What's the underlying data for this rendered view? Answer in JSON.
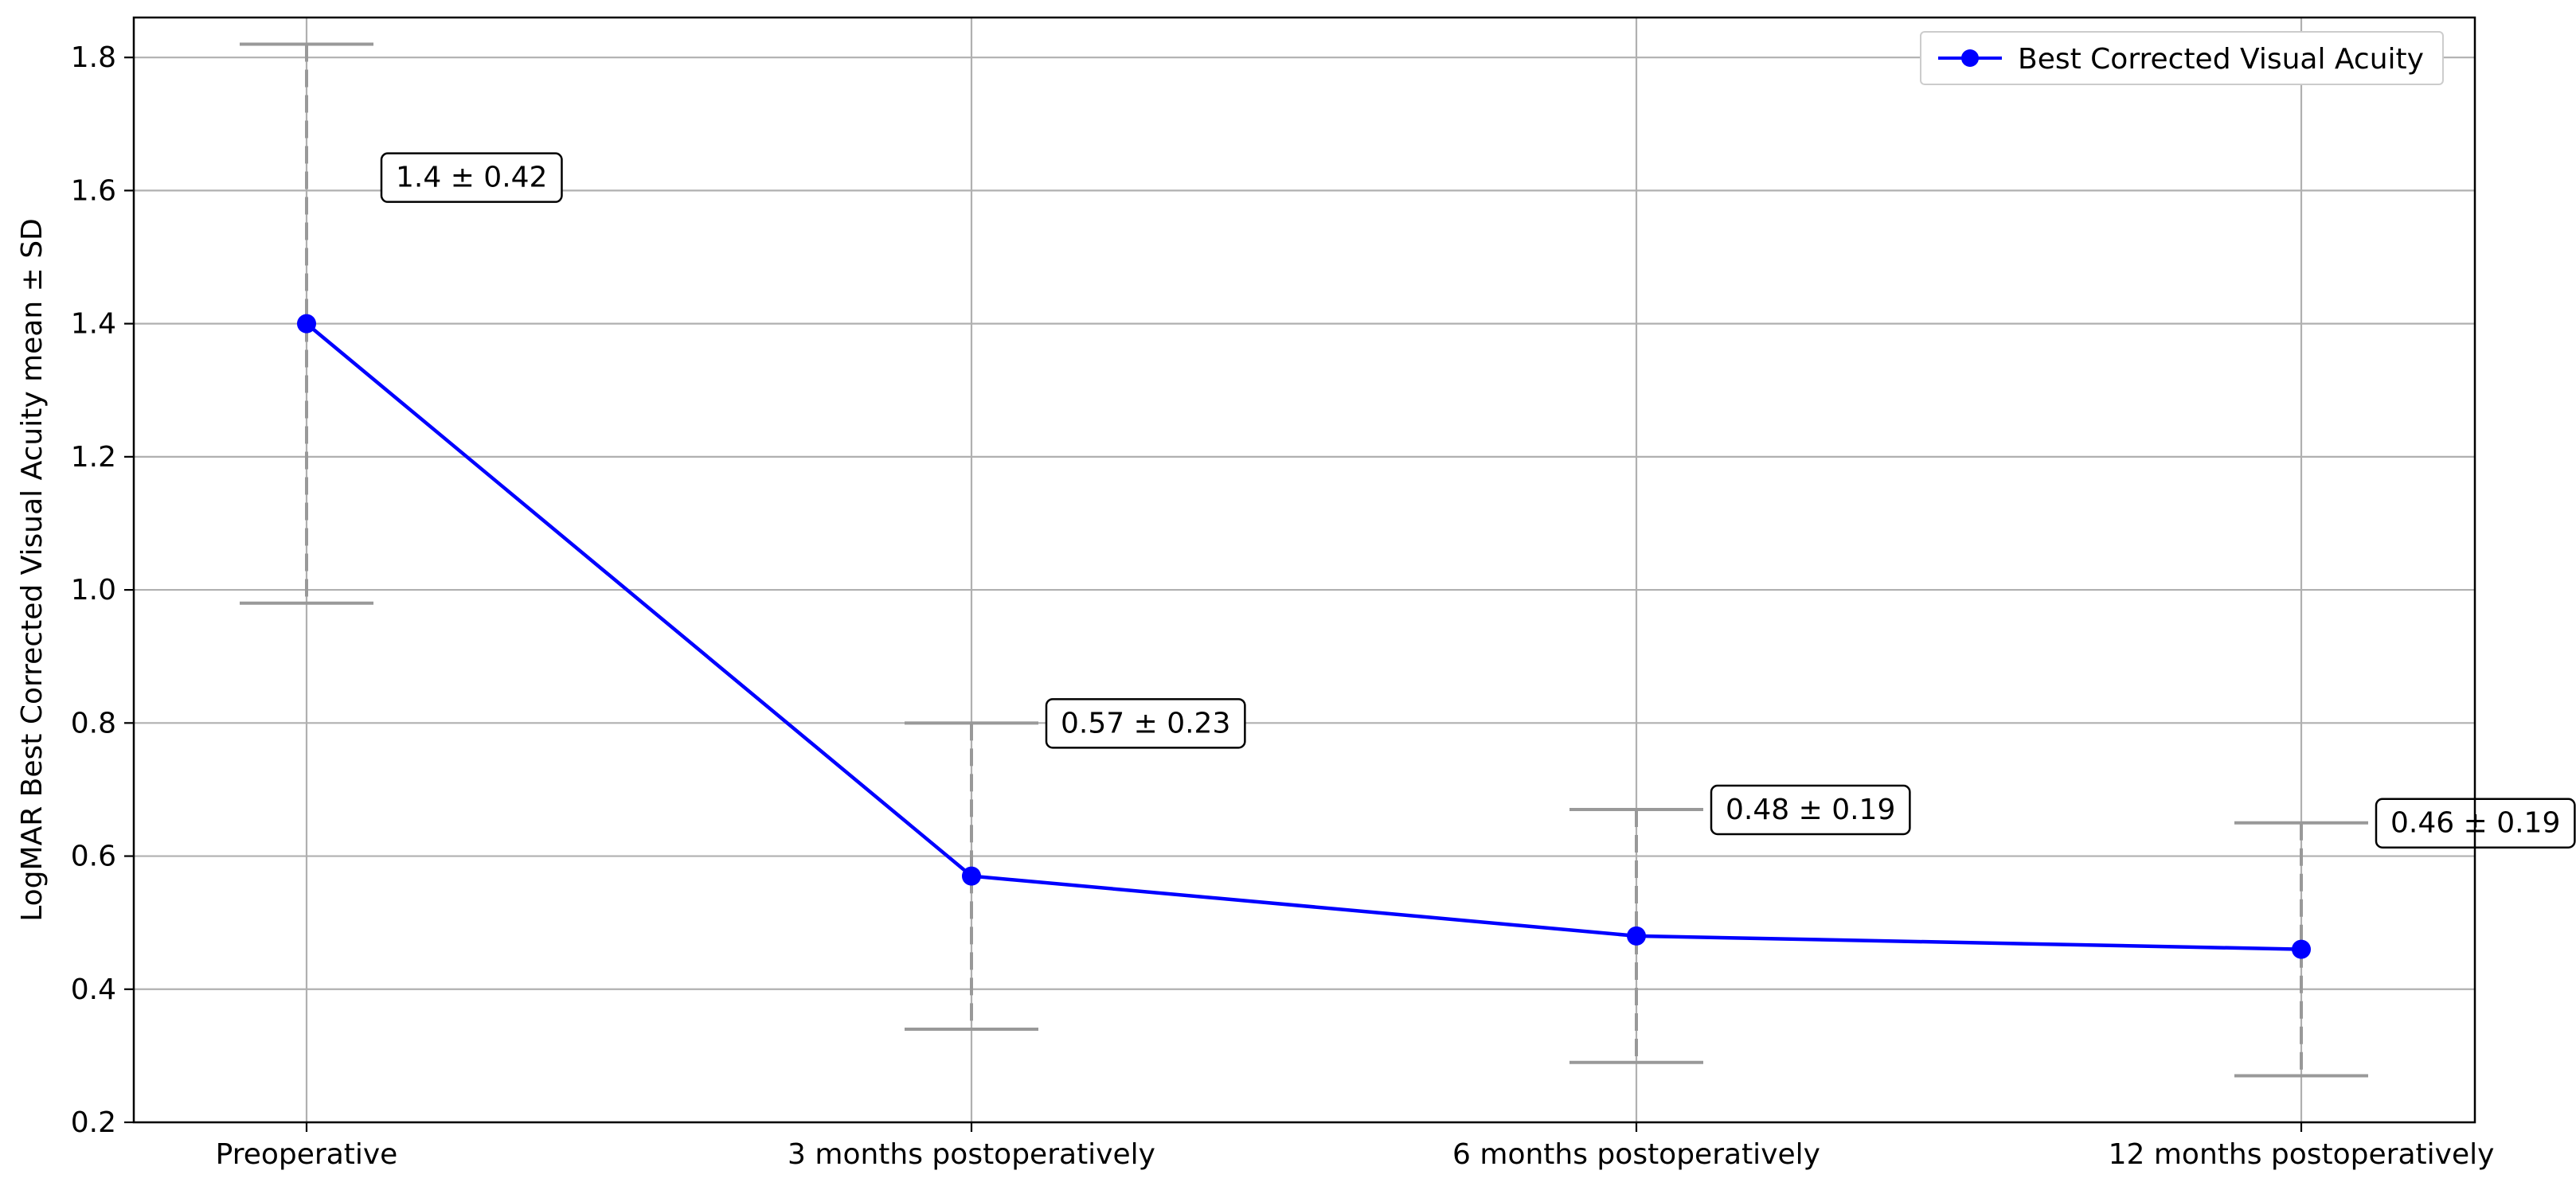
{
  "chart_data": {
    "type": "line",
    "categories": [
      "Preoperative",
      "3 months postoperatively",
      "6 months postoperatively",
      "12 months postoperatively"
    ],
    "series": [
      {
        "name": "Best Corrected Visual Acuity",
        "values": [
          1.4,
          0.57,
          0.48,
          0.46
        ],
        "sd": [
          0.42,
          0.23,
          0.19,
          0.19
        ],
        "color": "#0000ff",
        "marker": "circle"
      }
    ],
    "annotations": [
      "1.4 ± 0.42",
      "0.57 ± 0.23",
      "0.48 ± 0.19",
      "0.46 ± 0.19"
    ],
    "xlabel": "",
    "ylabel": "LogMAR Best Corrected Visual Acuity mean ± SD",
    "ylim": [
      0.2,
      1.86
    ],
    "yticks": [
      0.2,
      0.4,
      0.6,
      0.8,
      1.0,
      1.2,
      1.4,
      1.6,
      1.8
    ],
    "grid": true,
    "legend_position": "top-right",
    "errorbar_color": "#999999"
  }
}
